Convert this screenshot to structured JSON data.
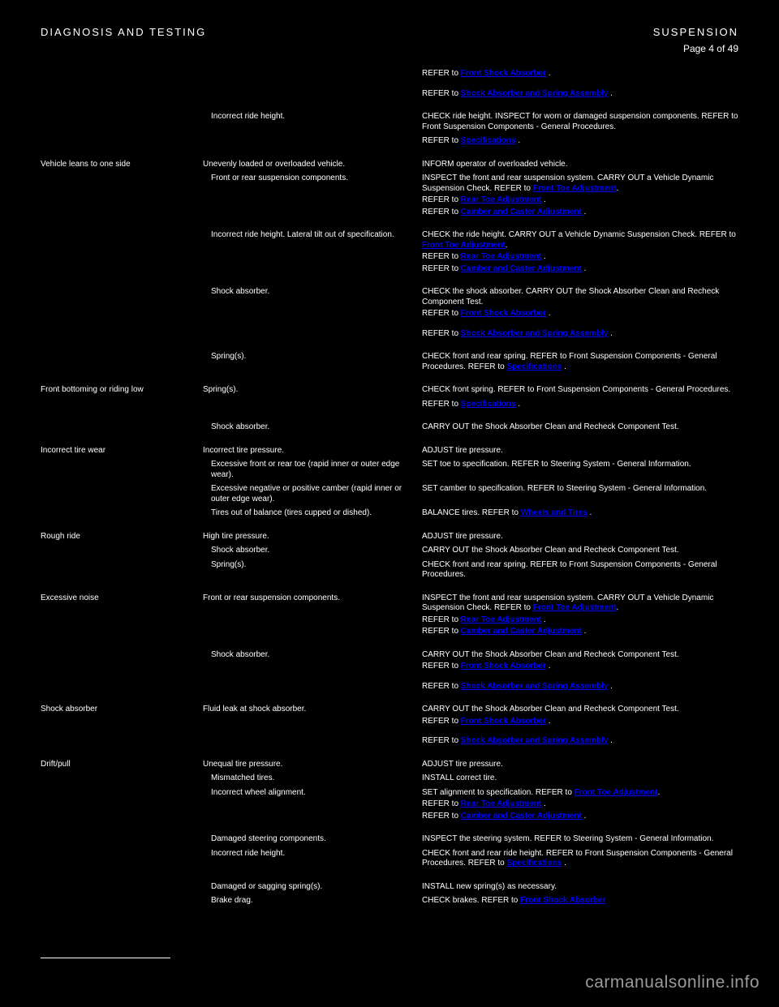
{
  "header": {
    "left": "DIAGNOSIS AND TESTING",
    "right": "SUSPENSION",
    "page_num": "Page 4 of 49"
  },
  "rows": [
    {
      "cond": "",
      "cause": "",
      "action_prefix": "REFER to ",
      "link": "Front Shock Absorber",
      "action_suffix": " ."
    },
    {
      "spacer": "md"
    },
    {
      "cond": "",
      "cause": "",
      "action_prefix": "REFER to ",
      "link": "Shock Absorber and Spring Assembly",
      "action_suffix": " ."
    },
    {
      "spacer": "lg"
    },
    {
      "cond": "",
      "cause": "Incorrect ride height.",
      "action": "CHECK ride height. INSPECT for worn or damaged suspension components. REFER to Front Suspension Components - General Procedures.",
      "nested": true
    },
    {
      "spacer": "sm"
    },
    {
      "cond": "",
      "cause": "",
      "action_prefix": "REFER to ",
      "link": "Specifications",
      "action_suffix": " ."
    },
    {
      "spacer": "lg"
    },
    {
      "cond": "Vehicle leans to one side",
      "cause": "Unevenly loaded or overloaded vehicle.",
      "action": "INFORM operator of overloaded vehicle."
    },
    {
      "spacer": "sm"
    },
    {
      "cond": "",
      "cause": "Front or rear suspension components.",
      "action_prefix": "INSPECT the front and rear suspension system. CARRY OUT a Vehicle Dynamic Suspension Check. REFER to ",
      "link": "Front Toe Adjustment",
      "action_suffix": ".",
      "nested": true
    },
    {
      "cond": "",
      "cause": "",
      "action_prefix": "REFER to ",
      "link": "Rear Toe Adjustment",
      "action_suffix": " ."
    },
    {
      "cond": "",
      "cause": "",
      "action_prefix": "REFER to ",
      "link": "Camber and Caster Adjustment",
      "action_suffix": " ."
    },
    {
      "spacer": "lg"
    },
    {
      "cond": "",
      "cause": "Incorrect ride height. Lateral tilt out of specification.",
      "action_prefix": "CHECK the ride height. CARRY OUT a Vehicle Dynamic Suspension Check. REFER to ",
      "link": "Front Toe Adjustment",
      "action_suffix": ".",
      "nested": true
    },
    {
      "cond": "",
      "cause": "",
      "action_prefix": "REFER to ",
      "link": "Rear Toe Adjustment",
      "action_suffix": " ."
    },
    {
      "cond": "",
      "cause": "",
      "action_prefix": "REFER to ",
      "link": "Camber and Caster Adjustment",
      "action_suffix": " ."
    },
    {
      "spacer": "lg"
    },
    {
      "cond": "",
      "cause": "Shock absorber.",
      "action": "CHECK the shock absorber. CARRY OUT the Shock Absorber Clean and Recheck Component Test.",
      "nested": true
    },
    {
      "cond": "",
      "cause": "",
      "action_prefix": "REFER to ",
      "link": "Front Shock Absorber",
      "action_suffix": " ."
    },
    {
      "spacer": "md"
    },
    {
      "cond": "",
      "cause": "",
      "action_prefix": "REFER to ",
      "link": "Shock Absorber and Spring Assembly",
      "action_suffix": " ."
    },
    {
      "spacer": "lg"
    },
    {
      "cond": "",
      "cause": "Spring(s).",
      "action_prefix": "CHECK front and rear spring. REFER to Front Suspension Components - General Procedures. REFER to ",
      "link": "Specifications",
      "action_suffix": " .",
      "nested": true
    },
    {
      "spacer": "lg"
    },
    {
      "cond": "Front bottoming or riding low",
      "cause": "Spring(s).",
      "action_prefix": "CHECK front spring. REFER to Front Suspension Components - General Procedures.",
      "nested": false
    },
    {
      "spacer": "sm"
    },
    {
      "cond": "",
      "cause": "",
      "action_prefix": "REFER to ",
      "link": "Specifications",
      "action_suffix": " ."
    },
    {
      "spacer": "lg"
    },
    {
      "cond": "",
      "cause": "Shock absorber.",
      "action": "CARRY OUT the Shock Absorber Clean and Recheck Component Test.",
      "nested": true
    },
    {
      "spacer": "lg"
    },
    {
      "cond": "Incorrect tire wear",
      "cause": "Incorrect tire pressure.",
      "action": "ADJUST tire pressure."
    },
    {
      "spacer": "sm"
    },
    {
      "cond": "",
      "cause": "Excessive front or rear toe (rapid inner or outer edge wear).",
      "action": "SET toe to specification. REFER to Steering System - General Information.",
      "nested": true
    },
    {
      "spacer": "sm"
    },
    {
      "cond": "",
      "cause": "Excessive negative or positive camber (rapid inner or outer edge wear).",
      "action": "SET camber to specification. REFER to Steering System - General Information.",
      "nested": true
    },
    {
      "spacer": "sm"
    },
    {
      "cond": "",
      "cause": "Tires out of balance (tires cupped or dished).",
      "action_prefix": "BALANCE tires. REFER to ",
      "link": "Wheels and Tires",
      "action_suffix": " .",
      "nested": true
    },
    {
      "spacer": "lg"
    },
    {
      "cond": "Rough ride",
      "cause": "High tire pressure.",
      "action": "ADJUST tire pressure."
    },
    {
      "spacer": "sm"
    },
    {
      "cond": "",
      "cause": "Shock absorber.",
      "action": "CARRY OUT the Shock Absorber Clean and Recheck Component Test.",
      "nested": true
    },
    {
      "spacer": "sm"
    },
    {
      "cond": "",
      "cause": "Spring(s).",
      "action": "CHECK front and rear spring. REFER to Front Suspension Components - General Procedures.",
      "nested": true
    },
    {
      "spacer": "lg"
    },
    {
      "cond": "Excessive noise",
      "cause": "Front or rear suspension components.",
      "action_prefix": "INSPECT the front and rear suspension system. CARRY OUT a Vehicle Dynamic Suspension Check. REFER to ",
      "link": "Front Toe Adjustment",
      "action_suffix": ".",
      "nested": false
    },
    {
      "cond": "",
      "cause": "",
      "action_prefix": "REFER to ",
      "link": "Rear Toe Adjustment",
      "action_suffix": " ."
    },
    {
      "cond": "",
      "cause": "",
      "action_prefix": "REFER to ",
      "link": "Camber and Caster Adjustment",
      "action_suffix": " ."
    },
    {
      "spacer": "lg"
    },
    {
      "cond": "",
      "cause": "Shock absorber.",
      "action": "CARRY OUT the Shock Absorber Clean and Recheck Component Test.",
      "nested": true
    },
    {
      "cond": "",
      "cause": "",
      "action_prefix": "REFER to ",
      "link": "Front Shock Absorber",
      "action_suffix": " ."
    },
    {
      "spacer": "md"
    },
    {
      "cond": "",
      "cause": "",
      "action_prefix": "REFER to ",
      "link": "Shock Absorber and Spring Assembly",
      "action_suffix": " ."
    },
    {
      "spacer": "lg"
    },
    {
      "cond": "Shock absorber",
      "cause": "Fluid leak at shock absorber.",
      "action": "CARRY OUT the Shock Absorber Clean and Recheck Component Test."
    },
    {
      "cond": "",
      "cause": "",
      "action_prefix": "REFER to ",
      "link": "Front Shock Absorber",
      "action_suffix": " ."
    },
    {
      "spacer": "md"
    },
    {
      "cond": "",
      "cause": "",
      "action_prefix": "REFER to ",
      "link": "Shock Absorber and Spring Assembly",
      "action_suffix": " ."
    },
    {
      "spacer": "lg"
    },
    {
      "cond": "Drift/pull",
      "cause": "Unequal tire pressure.",
      "action": "ADJUST tire pressure."
    },
    {
      "spacer": "sm"
    },
    {
      "cond": "",
      "cause": "Mismatched tires.",
      "action": "INSTALL correct tire.",
      "nested": true
    },
    {
      "spacer": "sm"
    },
    {
      "cond": "",
      "cause": "Incorrect wheel alignment.",
      "action_prefix": "SET alignment to specification. REFER to ",
      "link": "Front Toe Adjustment",
      "action_suffix": ".",
      "nested": true
    },
    {
      "cond": "",
      "cause": "",
      "action_prefix": "REFER to ",
      "link": "Rear Toe Adjustment",
      "action_suffix": " ."
    },
    {
      "cond": "",
      "cause": "",
      "action_prefix": "REFER to ",
      "link": "Camber and Caster Adjustment",
      "action_suffix": " ."
    },
    {
      "spacer": "lg"
    },
    {
      "cond": "",
      "cause": "Damaged steering components.",
      "action": "INSPECT the steering system. REFER to Steering System - General Information.",
      "nested": true
    },
    {
      "spacer": "sm"
    },
    {
      "cond": "",
      "cause": "Incorrect ride height.",
      "action_prefix": "CHECK front and rear ride height. REFER to Front Suspension Components - General Procedures. REFER to ",
      "link": "Specifications",
      "action_suffix": " .",
      "nested": true
    },
    {
      "spacer": "lg"
    },
    {
      "cond": "",
      "cause": "Damaged or sagging spring(s).",
      "action": "INSTALL new spring(s) as necessary.",
      "nested": true
    },
    {
      "spacer": "sm"
    },
    {
      "cond": "",
      "cause": "Brake drag.",
      "action_prefix": "CHECK brakes. REFER to ",
      "link": "Front Shock Absorber",
      "action_suffix": "",
      "nested": true
    }
  ],
  "watermark": "carmanualsonline.info",
  "colors": {
    "background": "#000000",
    "text": "#ffffff",
    "link": "#0000ff",
    "watermark": "#9a9a9a"
  }
}
